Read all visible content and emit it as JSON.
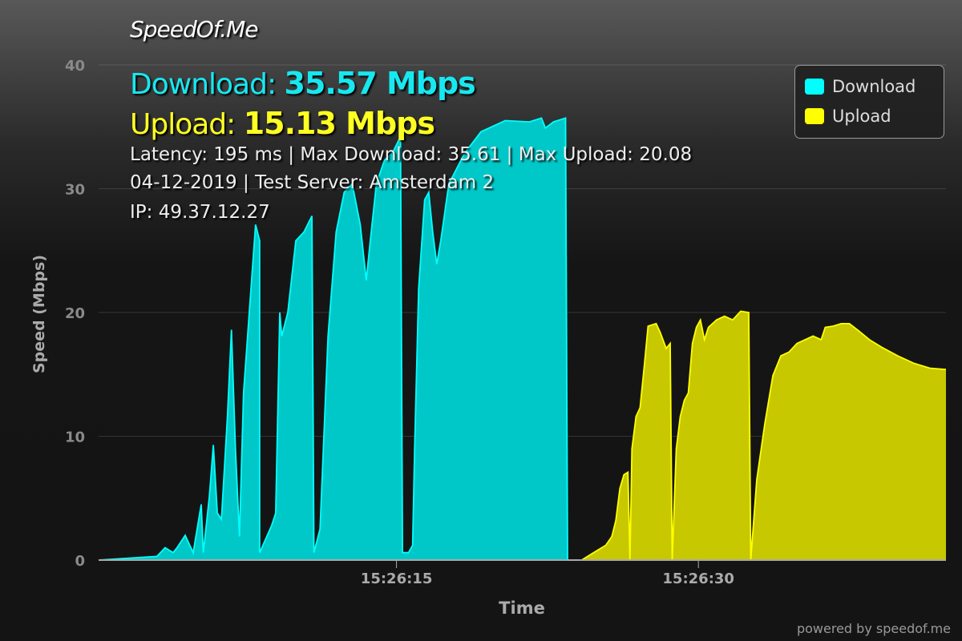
{
  "brand": "SpeedOf.Me",
  "summary": {
    "download_label": "Download:",
    "download_value": "35.57 Mbps",
    "upload_label": "Upload:",
    "upload_value": "15.13 Mbps",
    "line1": "Latency: 195 ms | Max Download: 35.61 | Max Upload: 20.08",
    "line2": "04-12-2019 | Test Server: Amsterdam 2",
    "line3": "IP: 49.37.12.27"
  },
  "footer": "powered by speedof.me",
  "colors": {
    "download": "#00c8c8",
    "download_line": "#00ffff",
    "upload": "#c8c800",
    "upload_line": "#ffff00"
  },
  "chart_data": {
    "type": "area",
    "xlabel": "Time",
    "ylabel": "Speed (Mbps)",
    "ylim": [
      0,
      40
    ],
    "yticks": [
      "0",
      "10",
      "20",
      "30",
      "40"
    ],
    "xlim": [
      "15:26:00.2",
      "15:26:42.3"
    ],
    "xticks": [
      "15:26:15",
      "15:26:30"
    ],
    "grid": true,
    "legend": {
      "placement": "top-right",
      "entries": [
        "Download",
        "Upload"
      ]
    },
    "series": [
      {
        "name": "Download",
        "points": [
          [
            "15:26:00.2",
            0
          ],
          [
            "15:26:03.1",
            0.3
          ],
          [
            "15:26:03.5",
            1.0
          ],
          [
            "15:26:03.9",
            0.6
          ],
          [
            "15:26:04.1",
            1.0
          ],
          [
            "15:26:04.5",
            2.0
          ],
          [
            "15:26:04.9",
            0.6
          ],
          [
            "15:26:05.3",
            4.5
          ],
          [
            "15:26:05.4",
            0.6
          ],
          [
            "15:26:05.7",
            5.1
          ],
          [
            "15:26:05.9",
            9.3
          ],
          [
            "15:26:06.1",
            3.8
          ],
          [
            "15:26:06.3",
            3.3
          ],
          [
            "15:26:06.6",
            11.6
          ],
          [
            "15:26:06.8",
            18.6
          ],
          [
            "15:26:07.0",
            9.0
          ],
          [
            "15:26:07.2",
            1.9
          ],
          [
            "15:26:07.4",
            13.5
          ],
          [
            "15:26:07.8",
            22.6
          ],
          [
            "15:26:08.0",
            27.1
          ],
          [
            "15:26:08.2",
            25.8
          ],
          [
            "15:26:08.2",
            0.6
          ],
          [
            "15:26:08.8",
            2.8
          ],
          [
            "15:26:09.0",
            3.8
          ],
          [
            "15:26:09.2",
            20.0
          ],
          [
            "15:26:09.3",
            18.1
          ],
          [
            "15:26:09.6",
            20.0
          ],
          [
            "15:26:10.0",
            25.8
          ],
          [
            "15:26:10.4",
            26.5
          ],
          [
            "15:26:10.8",
            27.8
          ],
          [
            "15:26:10.9",
            0.6
          ],
          [
            "15:26:11.2",
            2.5
          ],
          [
            "15:26:11.6",
            18.1
          ],
          [
            "15:26:12.0",
            26.5
          ],
          [
            "15:26:12.4",
            29.7
          ],
          [
            "15:26:12.8",
            30.4
          ],
          [
            "15:26:13.2",
            27.1
          ],
          [
            "15:26:13.5",
            22.6
          ],
          [
            "15:26:13.7",
            25.8
          ],
          [
            "15:26:14.0",
            30.4
          ],
          [
            "15:26:14.4",
            32.3
          ],
          [
            "15:26:14.8",
            32.9
          ],
          [
            "15:26:15.2",
            34.2
          ],
          [
            "15:26:15.3",
            0.6
          ],
          [
            "15:26:15.6",
            0.6
          ],
          [
            "15:26:15.8",
            1.2
          ],
          [
            "15:26:15.9",
            9.0
          ],
          [
            "15:26:16.1",
            21.9
          ],
          [
            "15:26:16.4",
            29.1
          ],
          [
            "15:26:16.6",
            29.7
          ],
          [
            "15:26:16.8",
            26.5
          ],
          [
            "15:26:17.0",
            23.9
          ],
          [
            "15:26:17.2",
            25.8
          ],
          [
            "15:26:17.6",
            30.4
          ],
          [
            "15:26:18.4",
            32.9
          ],
          [
            "15:26:19.2",
            34.6
          ],
          [
            "15:26:20.4",
            35.5
          ],
          [
            "15:26:21.6",
            35.4
          ],
          [
            "15:26:22.2",
            35.7
          ],
          [
            "15:26:22.4",
            34.9
          ],
          [
            "15:26:22.8",
            35.4
          ],
          [
            "15:26:23.4",
            35.7
          ],
          [
            "15:26:23.5",
            0
          ]
        ]
      },
      {
        "name": "Upload",
        "points": [
          [
            "15:26:24.2",
            0
          ],
          [
            "15:26:24.8",
            0.6
          ],
          [
            "15:26:25.4",
            1.2
          ],
          [
            "15:26:25.7",
            1.9
          ],
          [
            "15:26:25.9",
            3.2
          ],
          [
            "15:26:26.1",
            5.8
          ],
          [
            "15:26:26.3",
            6.9
          ],
          [
            "15:26:26.5",
            7.1
          ],
          [
            "15:26:26.6",
            0
          ],
          [
            "15:26:26.7",
            9.0
          ],
          [
            "15:26:26.9",
            11.6
          ],
          [
            "15:26:27.1",
            12.3
          ],
          [
            "15:26:27.3",
            15.5
          ],
          [
            "15:26:27.5",
            18.9
          ],
          [
            "15:26:27.9",
            19.1
          ],
          [
            "15:26:28.1",
            18.4
          ],
          [
            "15:26:28.4",
            17.1
          ],
          [
            "15:26:28.6",
            17.5
          ],
          [
            "15:26:28.7",
            0
          ],
          [
            "15:26:28.9",
            9.0
          ],
          [
            "15:26:29.1",
            11.6
          ],
          [
            "15:26:29.3",
            12.9
          ],
          [
            "15:26:29.5",
            13.5
          ],
          [
            "15:26:29.7",
            17.5
          ],
          [
            "15:26:29.9",
            18.8
          ],
          [
            "15:26:30.1",
            19.4
          ],
          [
            "15:26:30.3",
            17.8
          ],
          [
            "15:26:30.5",
            18.8
          ],
          [
            "15:26:30.9",
            19.4
          ],
          [
            "15:26:31.3",
            19.7
          ],
          [
            "15:26:31.7",
            19.4
          ],
          [
            "15:26:32.1",
            20.1
          ],
          [
            "15:26:32.5",
            20.0
          ],
          [
            "15:26:32.6",
            0
          ],
          [
            "15:26:32.9",
            6.5
          ],
          [
            "15:26:33.3",
            11.0
          ],
          [
            "15:26:33.7",
            14.9
          ],
          [
            "15:26:34.1",
            16.5
          ],
          [
            "15:26:34.5",
            16.8
          ],
          [
            "15:26:34.9",
            17.5
          ],
          [
            "15:26:35.3",
            17.8
          ],
          [
            "15:26:35.7",
            18.1
          ],
          [
            "15:26:36.1",
            17.8
          ],
          [
            "15:26:36.3",
            18.8
          ],
          [
            "15:26:36.7",
            18.9
          ],
          [
            "15:26:37.1",
            19.1
          ],
          [
            "15:26:37.5",
            19.1
          ],
          [
            "15:26:37.9",
            18.6
          ],
          [
            "15:26:38.5",
            17.8
          ],
          [
            "15:26:39.1",
            17.2
          ],
          [
            "15:26:39.9",
            16.5
          ],
          [
            "15:26:40.7",
            15.9
          ],
          [
            "15:26:41.5",
            15.5
          ],
          [
            "15:26:42.3",
            15.4
          ]
        ]
      }
    ]
  }
}
